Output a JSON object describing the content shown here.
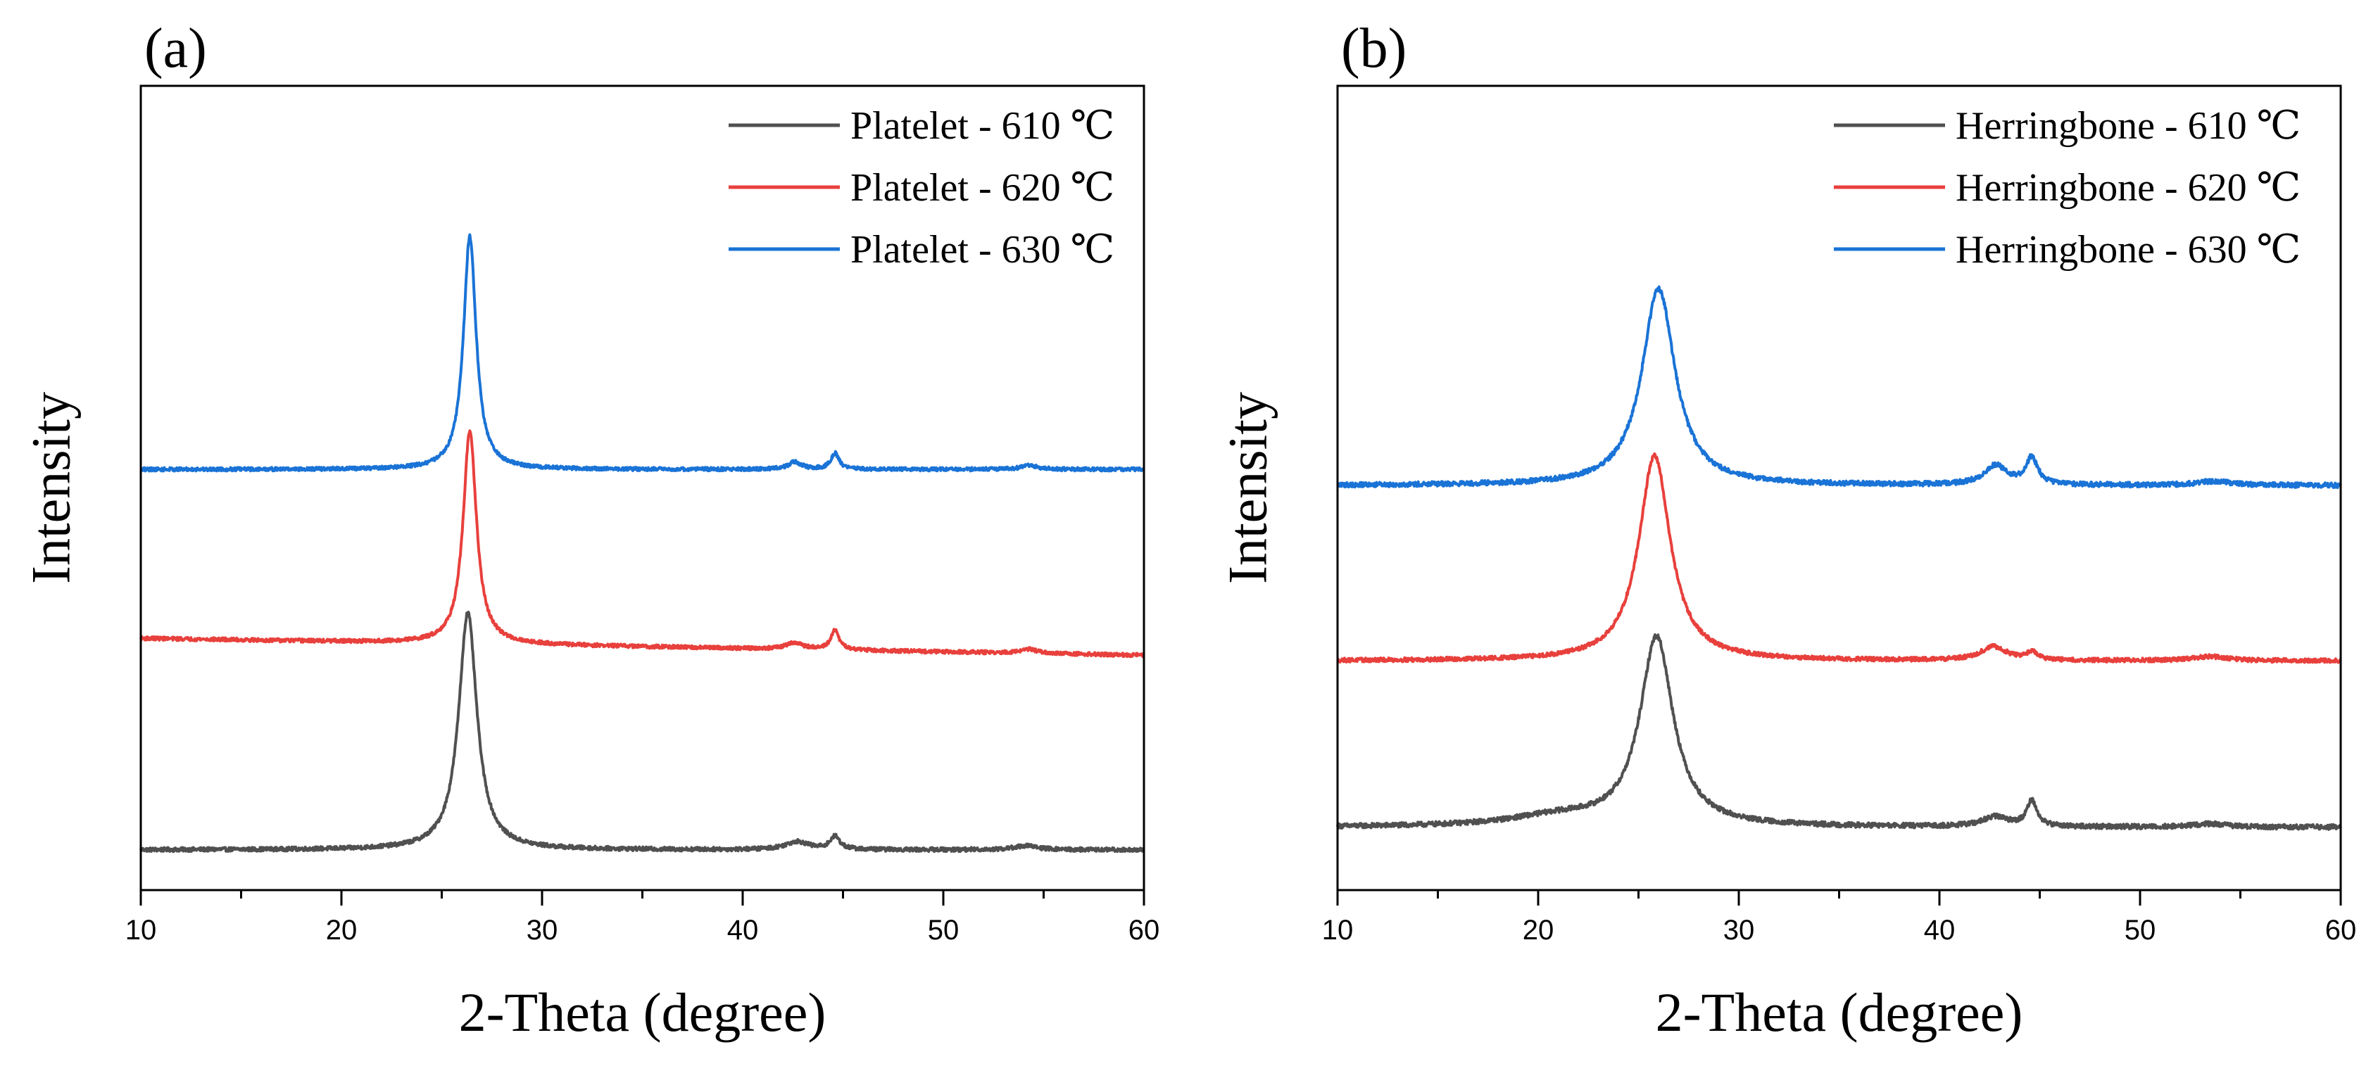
{
  "chart_data": [
    {
      "panel_label": "(a)",
      "type": "line",
      "xlabel": "2-Theta (degree)",
      "ylabel": "Intensity",
      "xlim": [
        10,
        60
      ],
      "ylim": [
        0,
        100
      ],
      "xticks": [
        "10",
        "20",
        "30",
        "40",
        "50",
        "60"
      ],
      "yticks": [],
      "grid": false,
      "legend_position": "top-right",
      "series": [
        {
          "name": "Platelet - 610 ℃",
          "color": "#505050",
          "baseline": 5.0,
          "base_slope": 0,
          "noise": 0.25,
          "peaks": [
            {
              "center": 26.3,
              "height": 29.5,
              "width": 0.55
            },
            {
              "center": 42.7,
              "height": 1.0,
              "width": 0.7
            },
            {
              "center": 44.6,
              "height": 1.6,
              "width": 0.3
            },
            {
              "center": 54.1,
              "height": 0.5,
              "width": 0.7
            }
          ]
        },
        {
          "name": "Platelet - 620 ℃",
          "color": "#e8403c",
          "baseline": 31.3,
          "base_slope": -0.042,
          "noise": 0.22,
          "peaks": [
            {
              "center": 26.4,
              "height": 26.5,
              "width": 0.4
            },
            {
              "center": 42.6,
              "height": 0.8,
              "width": 0.5
            },
            {
              "center": 44.6,
              "height": 2.4,
              "width": 0.25
            },
            {
              "center": 54.3,
              "height": 0.5,
              "width": 0.5
            }
          ]
        },
        {
          "name": "Platelet - 630 ℃",
          "color": "#1a73d6",
          "baseline": 52.3,
          "base_slope": 0,
          "noise": 0.22,
          "peaks": [
            {
              "center": 26.4,
              "height": 29.0,
              "width": 0.38
            },
            {
              "center": 42.6,
              "height": 0.9,
              "width": 0.4
            },
            {
              "center": 44.6,
              "height": 2.0,
              "width": 0.25
            },
            {
              "center": 54.3,
              "height": 0.5,
              "width": 0.5
            }
          ]
        }
      ]
    },
    {
      "panel_label": "(b)",
      "type": "line",
      "xlabel": "2-Theta (degree)",
      "ylabel": "Intensity",
      "xlim": [
        10,
        60
      ],
      "ylim": [
        0,
        100
      ],
      "xticks": [
        "10",
        "20",
        "30",
        "40",
        "50",
        "60"
      ],
      "yticks": [],
      "grid": false,
      "legend_position": "top-right",
      "series": [
        {
          "name": "Herringbone - 610 ℃",
          "color": "#505050",
          "baseline": 7.8,
          "base_slope": 0,
          "noise": 0.3,
          "peaks": [
            {
              "center": 25.9,
              "height": 23.5,
              "width": 1.0
            },
            {
              "center": 21.0,
              "height": 1.2,
              "width": 3.0
            },
            {
              "center": 42.8,
              "height": 1.2,
              "width": 0.8
            },
            {
              "center": 44.6,
              "height": 3.2,
              "width": 0.3
            },
            {
              "center": 53.5,
              "height": 0.4,
              "width": 1.0
            }
          ]
        },
        {
          "name": "Herringbone - 620 ℃",
          "color": "#e8403c",
          "baseline": 28.5,
          "base_slope": 0,
          "noise": 0.25,
          "peaks": [
            {
              "center": 25.8,
              "height": 25.5,
              "width": 0.95
            },
            {
              "center": 42.7,
              "height": 1.7,
              "width": 0.8
            },
            {
              "center": 44.6,
              "height": 1.0,
              "width": 0.3
            },
            {
              "center": 53.5,
              "height": 0.5,
              "width": 1.0
            }
          ]
        },
        {
          "name": "Herringbone - 630 ℃",
          "color": "#1a73d6",
          "baseline": 50.3,
          "base_slope": 0,
          "noise": 0.3,
          "peaks": [
            {
              "center": 26.0,
              "height": 24.5,
              "width": 1.0
            },
            {
              "center": 42.8,
              "height": 2.4,
              "width": 0.7
            },
            {
              "center": 44.6,
              "height": 3.3,
              "width": 0.35
            },
            {
              "center": 53.7,
              "height": 0.5,
              "width": 1.0
            }
          ]
        }
      ]
    }
  ]
}
